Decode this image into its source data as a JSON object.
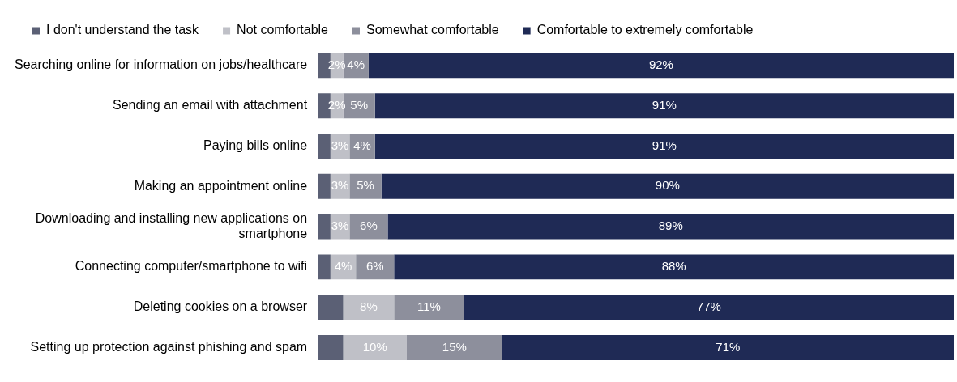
{
  "chart_data": {
    "type": "bar",
    "orientation": "horizontal",
    "stacked": true,
    "legend": "top left",
    "marker": "square",
    "tick_labels": "y",
    "grid": false,
    "categories": [
      "Searching online for information on jobs/healthcare",
      "Sending an email with attachment",
      "Paying bills online",
      "Making an appointment online",
      "Downloading and installing new applications on smartphone",
      "Connecting computer/smartphone to wifi",
      "Deleting cookies on a browser",
      "Setting up protection against phishing and spam"
    ],
    "xlim": [
      0,
      100
    ],
    "series": [
      {
        "name": "I don't understand the task",
        "color": "#5b6075",
        "values": [
          2,
          2,
          2,
          2,
          2,
          2,
          4,
          4
        ],
        "value_labels": [
          null,
          null,
          null,
          null,
          null,
          null,
          null,
          null
        ]
      },
      {
        "name": "Not comfortable",
        "color": "#bfc0c7",
        "values": [
          2,
          2,
          3,
          3,
          3,
          4,
          8,
          10
        ],
        "value_labels": [
          "2%",
          "2%",
          "3%",
          "3%",
          "3%",
          "4%",
          "8%",
          "10%"
        ]
      },
      {
        "name": "Somewhat comfortable",
        "color": "#8d8f9c",
        "values": [
          4,
          5,
          4,
          5,
          6,
          6,
          11,
          15
        ],
        "value_labels": [
          "4%",
          "5%",
          "4%",
          "5%",
          "6%",
          "6%",
          "11%",
          "15%"
        ]
      },
      {
        "name": "Comfortable to extremely comfortable",
        "color": "#1f2a55",
        "values": [
          92,
          91,
          91,
          90,
          89,
          88,
          77,
          71
        ],
        "value_labels": [
          "92%",
          "91%",
          "91%",
          "90%",
          "89%",
          "88%",
          "77%",
          "71%"
        ]
      }
    ]
  }
}
